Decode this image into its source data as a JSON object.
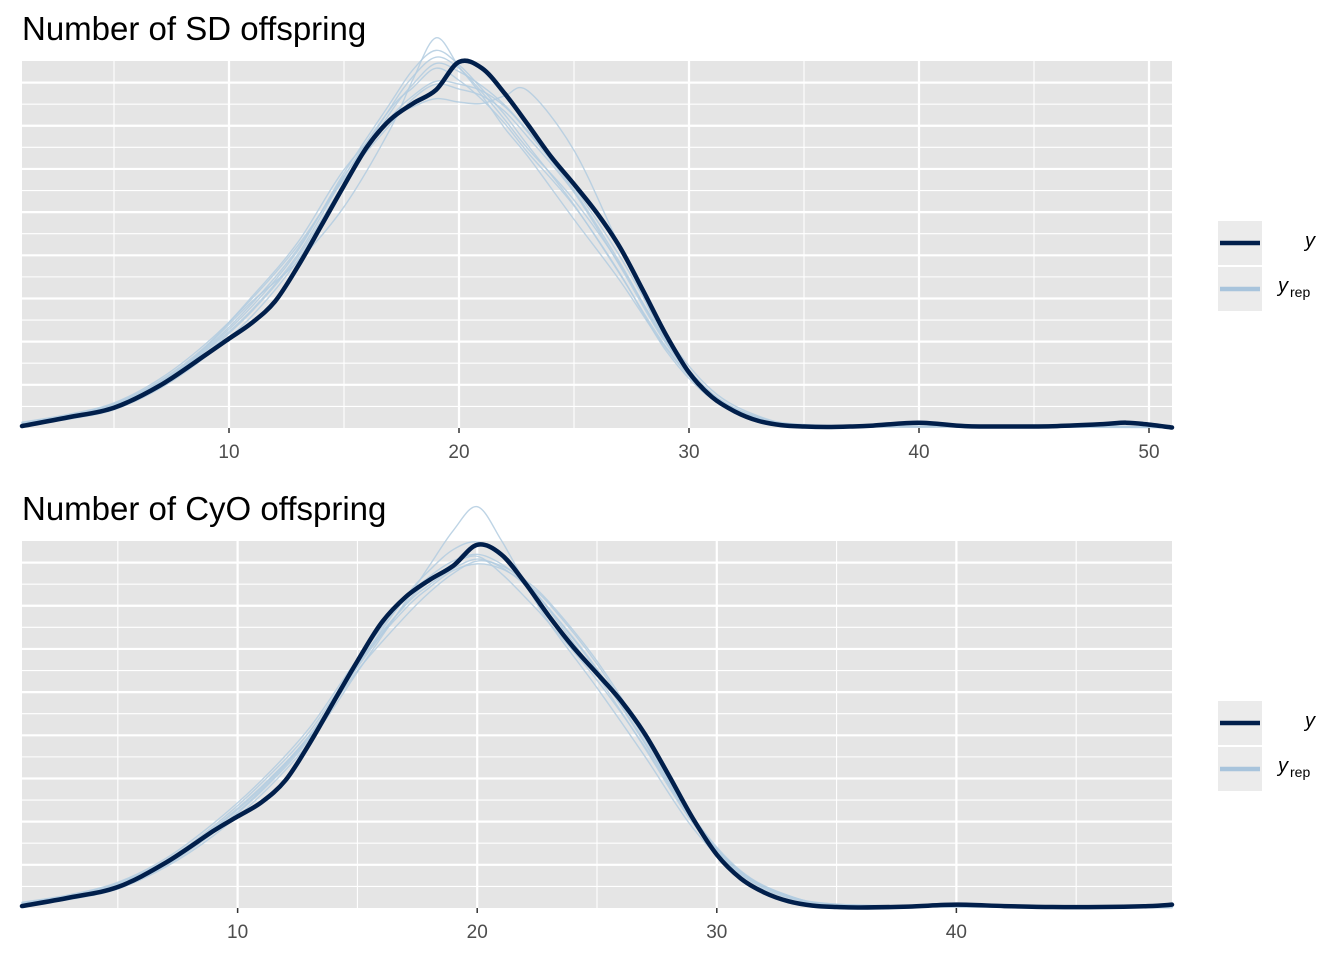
{
  "colors": {
    "panel_bg": "#e5e5e5",
    "grid_major": "#ffffff",
    "y": "#011f4b",
    "yrep": "#b3cde0",
    "legend_key_bg": "#ebebeb"
  },
  "legend": {
    "y_label": "y",
    "yrep_main": "y",
    "yrep_sub": "rep"
  },
  "chart_data": [
    {
      "type": "line",
      "title": "Number of SD offspring",
      "xlabel": "",
      "ylabel": "",
      "xlim": [
        1,
        51
      ],
      "ylim": [
        0,
        0.076
      ],
      "x_ticks": [
        10,
        20,
        30,
        40,
        50
      ],
      "x_tick_labels": [
        "10",
        "20",
        "30",
        "40",
        "50"
      ],
      "grid": true,
      "legend_position": "right",
      "y_axis_labels_shown": false,
      "series": [
        {
          "role": "y",
          "x": [
            1,
            3,
            5,
            7,
            9,
            10,
            11,
            12,
            13,
            14,
            15,
            16,
            17,
            18,
            19,
            20,
            21,
            22,
            23,
            24,
            25,
            26,
            27,
            28,
            29,
            30,
            31,
            32,
            33,
            34,
            35,
            36,
            37,
            38,
            40,
            42,
            44,
            46,
            48,
            49,
            50,
            51
          ],
          "values": [
            0.0004,
            0.0022,
            0.0042,
            0.0088,
            0.0152,
            0.0185,
            0.0218,
            0.0262,
            0.0335,
            0.0418,
            0.0502,
            0.0582,
            0.0638,
            0.0672,
            0.07,
            0.0758,
            0.0745,
            0.0692,
            0.0628,
            0.0562,
            0.0505,
            0.0445,
            0.0374,
            0.0285,
            0.0193,
            0.0115,
            0.0064,
            0.0034,
            0.0015,
            0.0006,
            0.0003,
            0.0002,
            0.0003,
            0.0005,
            0.0011,
            0.0004,
            0.0003,
            0.0004,
            0.0008,
            0.0011,
            0.0007,
            0.0001
          ]
        },
        {
          "role": "yrep",
          "x": [
            1,
            3,
            5,
            7,
            9,
            11,
            13,
            15,
            17,
            18,
            19,
            20,
            21,
            22,
            23,
            25,
            27,
            29,
            31,
            33,
            35,
            40,
            45,
            51
          ],
          "values": [
            0.001,
            0.0025,
            0.0048,
            0.0095,
            0.016,
            0.0245,
            0.036,
            0.052,
            0.066,
            0.0705,
            0.0745,
            0.072,
            0.068,
            0.063,
            0.057,
            0.046,
            0.032,
            0.016,
            0.006,
            0.0018,
            0.0005,
            0.0003,
            0.0004,
            0.0002
          ]
        },
        {
          "role": "yrep",
          "x": [
            1,
            3,
            5,
            7,
            9,
            11,
            13,
            15,
            17,
            18,
            19,
            20,
            21,
            22,
            23,
            25,
            27,
            29,
            31,
            33,
            35,
            40,
            45,
            51
          ],
          "values": [
            0.0012,
            0.0028,
            0.0052,
            0.0102,
            0.0175,
            0.0268,
            0.0378,
            0.0515,
            0.0628,
            0.0682,
            0.0712,
            0.0702,
            0.0688,
            0.0655,
            0.0602,
            0.0488,
            0.0335,
            0.0175,
            0.0068,
            0.0022,
            0.0006,
            0.0002,
            0.0006,
            0.0001
          ]
        },
        {
          "role": "yrep",
          "x": [
            1,
            3,
            5,
            7,
            9,
            11,
            13,
            15,
            17,
            18,
            19,
            20,
            21,
            22,
            23,
            25,
            27,
            29,
            31,
            33,
            35,
            40,
            45,
            51
          ],
          "values": [
            0.0008,
            0.002,
            0.0045,
            0.009,
            0.0168,
            0.0262,
            0.0345,
            0.0458,
            0.0618,
            0.0722,
            0.0808,
            0.0748,
            0.0688,
            0.062,
            0.0562,
            0.0432,
            0.0305,
            0.0165,
            0.0062,
            0.0018,
            0.0005,
            0.0003,
            0.0002,
            0.0001
          ]
        },
        {
          "role": "yrep",
          "x": [
            1,
            3,
            5,
            7,
            9,
            11,
            13,
            15,
            17,
            18,
            19,
            20,
            21,
            22,
            23,
            25,
            27,
            29,
            31,
            33,
            35,
            40,
            45,
            51
          ],
          "values": [
            0.0006,
            0.0018,
            0.0038,
            0.0082,
            0.0148,
            0.0232,
            0.0348,
            0.0502,
            0.0652,
            0.0712,
            0.0755,
            0.0738,
            0.0708,
            0.0668,
            0.0615,
            0.0498,
            0.0355,
            0.0192,
            0.0078,
            0.0025,
            0.0007,
            0.0004,
            0.0003,
            0.0002
          ]
        },
        {
          "role": "yrep",
          "x": [
            1,
            3,
            5,
            7,
            9,
            11,
            13,
            15,
            17,
            18,
            19,
            20,
            21,
            22,
            23,
            25,
            27,
            29,
            31,
            33,
            35,
            40,
            45,
            51
          ],
          "values": [
            0.001,
            0.0024,
            0.005,
            0.0098,
            0.017,
            0.0272,
            0.0385,
            0.0535,
            0.0638,
            0.0665,
            0.0682,
            0.0675,
            0.0672,
            0.0688,
            0.0698,
            0.0575,
            0.0375,
            0.0182,
            0.007,
            0.0021,
            0.0006,
            0.0003,
            0.0005,
            0.0002
          ]
        },
        {
          "role": "yrep",
          "x": [
            1,
            3,
            5,
            7,
            9,
            11,
            13,
            15,
            17,
            18,
            19,
            20,
            21,
            22,
            23,
            25,
            27,
            29,
            31,
            33,
            35,
            40,
            45,
            51
          ],
          "values": [
            0.0009,
            0.0022,
            0.0046,
            0.0092,
            0.0162,
            0.0252,
            0.0368,
            0.0528,
            0.0672,
            0.0742,
            0.0782,
            0.0752,
            0.0702,
            0.0648,
            0.0585,
            0.0462,
            0.0318,
            0.0168,
            0.0064,
            0.0019,
            0.0005,
            0.0002,
            0.0003,
            0.0001
          ]
        },
        {
          "role": "yrep",
          "x": [
            1,
            3,
            5,
            7,
            9,
            11,
            13,
            15,
            17,
            18,
            19,
            20,
            21,
            22,
            23,
            25,
            27,
            29,
            31,
            33,
            35,
            40,
            45,
            51
          ],
          "values": [
            0.0011,
            0.0026,
            0.0049,
            0.0096,
            0.0165,
            0.0258,
            0.0372,
            0.0522,
            0.0642,
            0.0688,
            0.0718,
            0.0712,
            0.0698,
            0.0665,
            0.0612,
            0.0492,
            0.0342,
            0.0178,
            0.007,
            0.0022,
            0.0006,
            0.0003,
            0.0004,
            0.0002
          ]
        },
        {
          "role": "yrep",
          "x": [
            1,
            3,
            5,
            7,
            9,
            11,
            13,
            15,
            17,
            18,
            19,
            20,
            21,
            22,
            23,
            25,
            27,
            29,
            31,
            33,
            35,
            40,
            45,
            51
          ],
          "values": [
            0.0007,
            0.0019,
            0.0042,
            0.0086,
            0.0155,
            0.0242,
            0.0355,
            0.0508,
            0.0662,
            0.0728,
            0.0768,
            0.0745,
            0.0695,
            0.0638,
            0.0578,
            0.0472,
            0.0338,
            0.0182,
            0.0072,
            0.0022,
            0.0006,
            0.0003,
            0.0002,
            0.0001
          ]
        }
      ]
    },
    {
      "type": "line",
      "title": "Number of CyO offspring",
      "xlabel": "",
      "ylabel": "",
      "xlim": [
        1,
        49
      ],
      "ylim": [
        0,
        0.077
      ],
      "x_ticks": [
        10,
        20,
        30,
        40
      ],
      "x_tick_labels": [
        "10",
        "20",
        "30",
        "40"
      ],
      "grid": true,
      "legend_position": "right",
      "y_axis_labels_shown": false,
      "series": [
        {
          "role": "y",
          "x": [
            1,
            3,
            5,
            7,
            9,
            10,
            11,
            12,
            13,
            14,
            15,
            16,
            17,
            18,
            19,
            20,
            21,
            22,
            23,
            24,
            25,
            26,
            27,
            28,
            29,
            30,
            31,
            32,
            33,
            34,
            35,
            36,
            38,
            40,
            42,
            44,
            46,
            48,
            49
          ],
          "values": [
            0.0004,
            0.0022,
            0.0044,
            0.0095,
            0.0162,
            0.0192,
            0.0222,
            0.0268,
            0.0345,
            0.0432,
            0.0518,
            0.0598,
            0.0652,
            0.0688,
            0.0718,
            0.0762,
            0.0742,
            0.0682,
            0.0612,
            0.0548,
            0.0492,
            0.0435,
            0.0365,
            0.0278,
            0.0188,
            0.0112,
            0.0062,
            0.0032,
            0.0014,
            0.0005,
            0.0002,
            0.0001,
            0.0003,
            0.0007,
            0.0004,
            0.0002,
            0.0002,
            0.0004,
            0.0007
          ]
        },
        {
          "role": "yrep",
          "x": [
            1,
            3,
            5,
            7,
            9,
            11,
            13,
            15,
            17,
            18,
            19,
            20,
            21,
            22,
            23,
            25,
            27,
            29,
            31,
            33,
            35,
            40,
            45,
            49
          ],
          "values": [
            0.001,
            0.0025,
            0.005,
            0.0098,
            0.0168,
            0.0255,
            0.0362,
            0.0505,
            0.0638,
            0.0685,
            0.0722,
            0.0738,
            0.0702,
            0.0652,
            0.0598,
            0.0478,
            0.0338,
            0.0182,
            0.0072,
            0.0025,
            0.0008,
            0.0003,
            0.0002,
            0.0001
          ]
        },
        {
          "role": "yrep",
          "x": [
            1,
            3,
            5,
            7,
            9,
            11,
            13,
            15,
            17,
            18,
            19,
            20,
            21,
            22,
            23,
            25,
            27,
            29,
            31,
            33,
            35,
            40,
            45,
            49
          ],
          "values": [
            0.0008,
            0.0022,
            0.0046,
            0.0092,
            0.016,
            0.0248,
            0.0358,
            0.0498,
            0.0612,
            0.0662,
            0.0702,
            0.0728,
            0.0718,
            0.0688,
            0.0642,
            0.0518,
            0.0362,
            0.0192,
            0.0078,
            0.0026,
            0.0007,
            0.0003,
            0.0002,
            0.0001
          ]
        },
        {
          "role": "yrep",
          "x": [
            1,
            3,
            5,
            7,
            9,
            11,
            13,
            15,
            17,
            18,
            19,
            20,
            21,
            22,
            23,
            25,
            27,
            29,
            31,
            33,
            35,
            40,
            45,
            49
          ],
          "values": [
            0.0006,
            0.0018,
            0.004,
            0.0086,
            0.0152,
            0.0238,
            0.0348,
            0.0495,
            0.0642,
            0.0718,
            0.0792,
            0.0842,
            0.0772,
            0.0682,
            0.0598,
            0.0462,
            0.0318,
            0.0168,
            0.0065,
            0.0021,
            0.0006,
            0.0002,
            0.0002,
            0.0001
          ]
        },
        {
          "role": "yrep",
          "x": [
            1,
            3,
            5,
            7,
            9,
            11,
            13,
            15,
            17,
            18,
            19,
            20,
            21,
            22,
            23,
            25,
            27,
            29,
            31,
            33,
            35,
            40,
            45,
            49
          ],
          "values": [
            0.0012,
            0.0028,
            0.0054,
            0.0104,
            0.0178,
            0.0268,
            0.0378,
            0.0522,
            0.0648,
            0.0695,
            0.0728,
            0.0742,
            0.0722,
            0.0682,
            0.0628,
            0.0498,
            0.0345,
            0.0185,
            0.0076,
            0.0026,
            0.0008,
            0.0003,
            0.0004,
            0.0002
          ]
        },
        {
          "role": "yrep",
          "x": [
            1,
            3,
            5,
            7,
            9,
            11,
            13,
            15,
            17,
            18,
            19,
            20,
            21,
            22,
            23,
            25,
            27,
            29,
            31,
            33,
            35,
            40,
            45,
            49
          ],
          "values": [
            0.0009,
            0.0023,
            0.0048,
            0.0095,
            0.0165,
            0.0252,
            0.0362,
            0.0512,
            0.0628,
            0.0672,
            0.0708,
            0.0722,
            0.0712,
            0.0682,
            0.0638,
            0.0512,
            0.0355,
            0.0188,
            0.0074,
            0.0024,
            0.0007,
            0.0003,
            0.0002,
            0.0001
          ]
        },
        {
          "role": "yrep",
          "x": [
            1,
            3,
            5,
            7,
            9,
            11,
            13,
            15,
            17,
            18,
            19,
            20,
            21,
            22,
            23,
            25,
            27,
            29,
            31,
            33,
            35,
            40,
            45,
            49
          ],
          "values": [
            0.0007,
            0.002,
            0.0044,
            0.0089,
            0.0158,
            0.0245,
            0.0355,
            0.0508,
            0.0652,
            0.0708,
            0.0752,
            0.0768,
            0.0738,
            0.0688,
            0.0625,
            0.0488,
            0.0335,
            0.0178,
            0.007,
            0.0023,
            0.0007,
            0.0003,
            0.0002,
            0.0001
          ]
        },
        {
          "role": "yrep",
          "x": [
            1,
            3,
            5,
            7,
            9,
            11,
            13,
            15,
            17,
            18,
            19,
            20,
            21,
            22,
            23,
            25,
            27,
            29,
            31,
            33,
            35,
            40,
            45,
            49
          ],
          "values": [
            0.0011,
            0.0026,
            0.0052,
            0.01,
            0.0172,
            0.0262,
            0.037,
            0.0515,
            0.0635,
            0.0678,
            0.0712,
            0.0732,
            0.0715,
            0.0678,
            0.0628,
            0.0502,
            0.0348,
            0.0185,
            0.0075,
            0.0025,
            0.0007,
            0.0003,
            0.0003,
            0.0001
          ]
        }
      ]
    }
  ]
}
